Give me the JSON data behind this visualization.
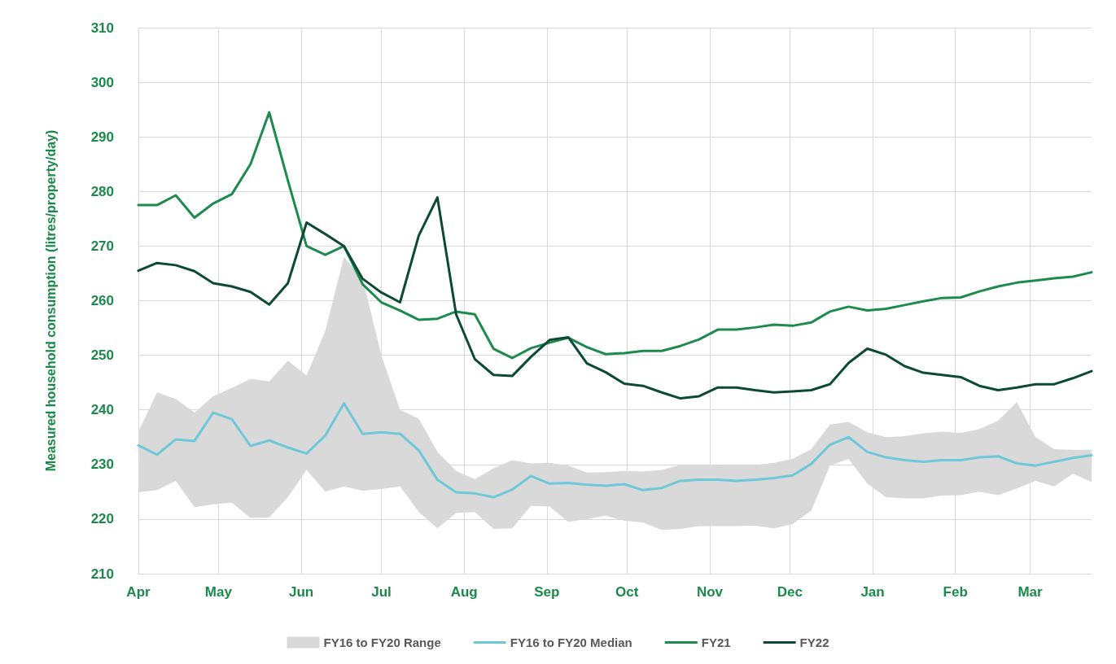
{
  "chart_data": {
    "type": "line",
    "ylabel": "Measured household consumption (litres/property/day)",
    "x": [
      "2020-04-01",
      "2020-04-08",
      "2020-04-15",
      "2020-04-22",
      "2020-04-29",
      "2020-05-06",
      "2020-05-13",
      "2020-05-20",
      "2020-05-27",
      "2020-06-03",
      "2020-06-10",
      "2020-06-17",
      "2020-06-24",
      "2020-07-01",
      "2020-07-08",
      "2020-07-15",
      "2020-07-22",
      "2020-07-29",
      "2020-08-05",
      "2020-08-12",
      "2020-08-19",
      "2020-08-26",
      "2020-09-02",
      "2020-09-09",
      "2020-09-16",
      "2020-09-23",
      "2020-09-30",
      "2020-10-07",
      "2020-10-14",
      "2020-10-21",
      "2020-10-28",
      "2020-11-04",
      "2020-11-11",
      "2020-11-18",
      "2020-11-25",
      "2020-12-02",
      "2020-12-09",
      "2020-12-16",
      "2020-12-23",
      "2020-12-30",
      "2021-01-06",
      "2021-01-13",
      "2021-01-20",
      "2021-01-27",
      "2021-02-03",
      "2021-02-10",
      "2021-02-17",
      "2021-02-24",
      "2021-03-03",
      "2021-03-10",
      "2021-03-17",
      "2021-03-24"
    ],
    "xlim": [
      "2020-04-01",
      "2021-03-24"
    ],
    "xticks": [
      {
        "value": "2020-04-01",
        "label": "Apr"
      },
      {
        "value": "2020-05-01",
        "label": "May"
      },
      {
        "value": "2020-06-01",
        "label": "Jun"
      },
      {
        "value": "2020-07-01",
        "label": "Jul"
      },
      {
        "value": "2020-08-01",
        "label": "Aug"
      },
      {
        "value": "2020-09-01",
        "label": "Sep"
      },
      {
        "value": "2020-10-01",
        "label": "Oct"
      },
      {
        "value": "2020-11-01",
        "label": "Nov"
      },
      {
        "value": "2020-12-01",
        "label": "Dec"
      },
      {
        "value": "2021-01-01",
        "label": "Jan"
      },
      {
        "value": "2021-02-01",
        "label": "Feb"
      },
      {
        "value": "2021-03-01",
        "label": "Mar"
      }
    ],
    "ylim": [
      210,
      310
    ],
    "yticks": [
      210,
      220,
      230,
      240,
      250,
      260,
      270,
      280,
      290,
      300,
      310
    ],
    "grid": true,
    "legend": "bottom",
    "marker": "none",
    "line_style": "solid",
    "series": [
      {
        "name": "FY16 to FY20 Range",
        "type": "area",
        "color": "#d9d9d9",
        "values": [
          null,
          null,
          null,
          null,
          null,
          null,
          null,
          null,
          null,
          null,
          null,
          null,
          null,
          null,
          null,
          null,
          null,
          null,
          null,
          null,
          null,
          null,
          null,
          null,
          null,
          null,
          null,
          null,
          null,
          null,
          null,
          null,
          null,
          null,
          null,
          null,
          null,
          null,
          null,
          null,
          null,
          null,
          null,
          null,
          null,
          null,
          null,
          null,
          null,
          null,
          null,
          null
        ],
        "upper": [
          236,
          243.2,
          242,
          239.5,
          242.5,
          244,
          245.7,
          245.2,
          249,
          246.3,
          254.5,
          268,
          264,
          250,
          240,
          238.4,
          232.3,
          228.8,
          227.3,
          229.3,
          230.8,
          230.2,
          230.3,
          229.8,
          228.5,
          228.6,
          228.8,
          228.7,
          229,
          229.9,
          229.9,
          230,
          229.9,
          229.9,
          230.3,
          231,
          232.8,
          237.3,
          237.8,
          235.9,
          235,
          235.2,
          235.7,
          236,
          235.8,
          236.5,
          238,
          241.4,
          235,
          232.8,
          232.7,
          232.7
        ],
        "lower": [
          224.9,
          225.3,
          227,
          222.2,
          222.7,
          223,
          220.2,
          220.3,
          224,
          229,
          225,
          226,
          225.2,
          225.5,
          226,
          221.3,
          218.3,
          221.1,
          221.3,
          218.2,
          218.3,
          222.4,
          222.3,
          219.5,
          220,
          220.6,
          219.7,
          219.4,
          218,
          218.2,
          218.7,
          218.7,
          218.7,
          218.8,
          218.3,
          219.1,
          221.5,
          229.8,
          231,
          226.5,
          224,
          223.8,
          223.8,
          224.3,
          224.4,
          225,
          224.4,
          225.6,
          227,
          226,
          228.3,
          226.8
        ]
      },
      {
        "name": "FY16 to FY20 Median",
        "color": "#6ec8d8",
        "values": [
          233.5,
          231.8,
          234.6,
          234.3,
          239.5,
          238.3,
          233.4,
          234.4,
          233.1,
          232,
          235.3,
          241.2,
          235.6,
          235.9,
          235.6,
          232.6,
          227.2,
          224.9,
          224.7,
          224,
          225.4,
          227.9,
          226.5,
          226.6,
          226.3,
          226.1,
          226.4,
          225.3,
          225.7,
          227,
          227.2,
          227.2,
          227,
          227.2,
          227.5,
          228,
          230.1,
          233.6,
          235,
          232.3,
          231.3,
          230.8,
          230.5,
          230.8,
          230.8,
          231.3,
          231.5,
          230.2,
          229.8,
          230.5,
          231.2,
          231.7
        ]
      },
      {
        "name": "FY21",
        "color": "#1d8a4e",
        "values": [
          277.5,
          277.5,
          279.3,
          275.2,
          277.8,
          279.5,
          285,
          294.5,
          282,
          270,
          268.4,
          270,
          263,
          259.7,
          258.2,
          256.5,
          256.7,
          258,
          257.5,
          251.2,
          249.5,
          251.3,
          252.3,
          253.2,
          251.5,
          250.2,
          250.4,
          250.8,
          250.8,
          251.7,
          252.9,
          254.7,
          254.7,
          255.1,
          255.6,
          255.4,
          256,
          258,
          258.9,
          258.2,
          258.5,
          259.2,
          259.9,
          260.5,
          260.6,
          261.7,
          262.6,
          263.3,
          263.7,
          264.1,
          264.4,
          265.2
        ]
      },
      {
        "name": "FY22",
        "color": "#0d4a36",
        "values": [
          265.5,
          266.9,
          266.5,
          265.4,
          263.2,
          262.6,
          261.6,
          259.3,
          263.2,
          274.3,
          272.2,
          270,
          264,
          261.5,
          259.7,
          271.9,
          278.9,
          257.5,
          249.3,
          246.4,
          246.2,
          249.7,
          252.8,
          253.3,
          248.5,
          246.9,
          244.8,
          244.4,
          243.2,
          242.1,
          242.5,
          244.1,
          244.1,
          243.6,
          243.2,
          243.4,
          243.6,
          244.7,
          248.6,
          251.2,
          250.1,
          248,
          246.8,
          246.4,
          246,
          244.4,
          243.6,
          244.1,
          244.7,
          244.7,
          245.8,
          247.1
        ]
      }
    ]
  }
}
